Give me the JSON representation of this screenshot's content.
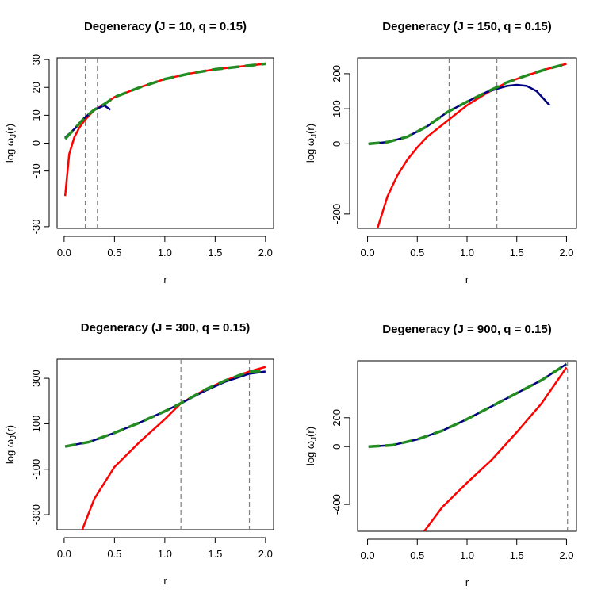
{
  "chart_data": [
    {
      "type": "line",
      "title": "Degeneracy (J = 10, q = 0.15)",
      "xlabel": "r",
      "ylabel": {
        "main": "log ω",
        "sub": "J",
        "end": "(r)"
      },
      "xlim": [
        -0.07,
        2.08
      ],
      "ylim": [
        -30.6,
        30.6
      ],
      "xticks": [
        {
          "value": 0,
          "label": "0.0"
        },
        0.5,
        {
          "value": 1,
          "label": "1.0"
        },
        1.5,
        {
          "value": 2,
          "label": "2.0"
        }
      ],
      "yticks": [
        30,
        20,
        10,
        0,
        -10,
        -30
      ],
      "vlines": [
        0.21,
        0.33
      ],
      "series": [
        {
          "color": "#ff0000",
          "x": [
            0.01,
            0.05,
            0.1,
            0.15,
            0.2,
            0.25,
            0.3,
            0.4,
            0.5,
            0.75,
            1.0,
            1.25,
            1.5,
            1.75,
            2.0
          ],
          "values": [
            -19,
            -4,
            2,
            5.5,
            8,
            10,
            11.8,
            14,
            16.5,
            20,
            23,
            25,
            26.5,
            27.5,
            28.5
          ]
        },
        {
          "color": "#000080",
          "x": [
            0.01,
            0.1,
            0.2,
            0.3,
            0.4,
            0.46
          ],
          "values": [
            2,
            5,
            9,
            12,
            13.5,
            12
          ]
        },
        {
          "color": "#228b22",
          "dashed": true,
          "x": [
            0.01,
            0.1,
            0.2,
            0.3,
            0.4,
            0.5,
            0.75,
            1.0,
            1.25,
            1.5,
            1.75,
            2.0
          ],
          "values": [
            1.5,
            5,
            9,
            12,
            14,
            16.5,
            20,
            23,
            25,
            26.5,
            27.5,
            28.5
          ]
        }
      ]
    },
    {
      "type": "line",
      "title": "Degeneracy (J = 150, q = 0.15)",
      "xlabel": "r",
      "ylabel": {
        "main": "log ω",
        "sub": "J",
        "end": "(r)"
      },
      "xlim": [
        -0.1,
        2.1
      ],
      "ylim": [
        -241,
        245
      ],
      "xticks": [
        {
          "value": 0,
          "label": "0.0"
        },
        0.5,
        {
          "value": 1,
          "label": "1.0"
        },
        1.5,
        {
          "value": 2,
          "label": "2.0"
        }
      ],
      "yticks": [
        200,
        100,
        0,
        -200
      ],
      "vlines": [
        0.82,
        1.3
      ],
      "series": [
        {
          "color": "#ff0000",
          "x": [
            0.1,
            0.2,
            0.3,
            0.4,
            0.5,
            0.6,
            0.8,
            1.0,
            1.2,
            1.4,
            1.6,
            1.8,
            2.0
          ],
          "values": [
            -241,
            -150,
            -90,
            -45,
            -10,
            20,
            65,
            110,
            145,
            175,
            195,
            213,
            228
          ]
        },
        {
          "color": "#000080",
          "x": [
            0.01,
            0.2,
            0.4,
            0.6,
            0.8,
            1.0,
            1.2,
            1.4,
            1.5,
            1.6,
            1.7,
            1.83
          ],
          "values": [
            0,
            5,
            20,
            50,
            90,
            120,
            148,
            165,
            168,
            165,
            150,
            110
          ]
        },
        {
          "color": "#228b22",
          "dashed": true,
          "x": [
            0.01,
            0.2,
            0.4,
            0.6,
            0.8,
            1.0,
            1.2,
            1.4,
            1.6,
            1.8,
            2.0
          ],
          "values": [
            0,
            5,
            20,
            50,
            90,
            120,
            148,
            175,
            195,
            213,
            228
          ]
        }
      ]
    },
    {
      "type": "line",
      "title": "Degeneracy (J = 300, q = 0.15)",
      "xlabel": "r",
      "ylabel": {
        "main": "log ω",
        "sub": "J",
        "end": "(r)"
      },
      "xlim": [
        -0.07,
        2.08
      ],
      "ylim": [
        -366,
        384
      ],
      "xticks": [
        {
          "value": 0,
          "label": "0.0"
        },
        0.5,
        {
          "value": 1,
          "label": "1.0"
        },
        1.5,
        {
          "value": 2,
          "label": "2.0"
        }
      ],
      "yticks": [
        300,
        100,
        -100,
        -300
      ],
      "vlines": [
        1.16,
        1.84
      ],
      "series": [
        {
          "color": "#ff0000",
          "x": [
            0.18,
            0.3,
            0.5,
            0.75,
            1.0,
            1.16,
            1.4,
            1.6,
            1.84,
            2.0
          ],
          "values": [
            -366,
            -230,
            -90,
            20,
            120,
            190,
            250,
            290,
            330,
            350
          ]
        },
        {
          "color": "#000080",
          "x": [
            0.01,
            0.25,
            0.5,
            0.75,
            1.0,
            1.16,
            1.4,
            1.6,
            1.84,
            2.0
          ],
          "values": [
            0,
            20,
            60,
            105,
            155,
            190,
            245,
            285,
            320,
            330
          ]
        },
        {
          "color": "#228b22",
          "dashed": true,
          "x": [
            0.01,
            0.25,
            0.5,
            0.75,
            1.0,
            1.16,
            1.4,
            1.6,
            1.84,
            2.0
          ],
          "values": [
            0,
            20,
            60,
            105,
            155,
            190,
            250,
            290,
            330,
            333
          ]
        }
      ]
    },
    {
      "type": "line",
      "title": "Degeneracy (J = 900, q = 0.15)",
      "xlabel": "r",
      "ylabel": {
        "main": "log ω",
        "sub": "J",
        "end": "(r)"
      },
      "xlim": [
        -0.1,
        2.1
      ],
      "ylim": [
        -586,
        594
      ],
      "xticks": [
        {
          "value": 0,
          "label": "0.0"
        },
        0.5,
        {
          "value": 1,
          "label": "1.0"
        },
        1.5,
        {
          "value": 2,
          "label": "2.0"
        }
      ],
      "yticks": [
        200,
        0,
        -400
      ],
      "vlines": [
        2.01
      ],
      "series": [
        {
          "color": "#ff0000",
          "x": [
            0.57,
            0.75,
            1.0,
            1.25,
            1.5,
            1.75,
            2.0
          ],
          "values": [
            -586,
            -420,
            -250,
            -90,
            100,
            300,
            548
          ]
        },
        {
          "color": "#000080",
          "x": [
            0.01,
            0.25,
            0.5,
            0.75,
            1.0,
            1.25,
            1.5,
            1.75,
            2.0
          ],
          "values": [
            0,
            10,
            50,
            110,
            190,
            280,
            370,
            460,
            572
          ]
        },
        {
          "color": "#228b22",
          "dashed": true,
          "x": [
            0.01,
            0.25,
            0.5,
            0.75,
            1.0,
            1.25,
            1.5,
            1.75,
            2.0
          ],
          "values": [
            0,
            10,
            50,
            110,
            190,
            280,
            370,
            460,
            572
          ]
        }
      ]
    }
  ]
}
